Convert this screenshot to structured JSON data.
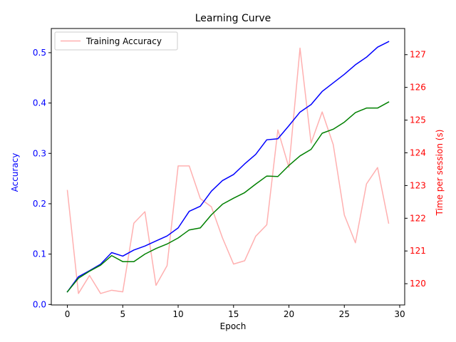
{
  "chart_data": {
    "type": "line",
    "title": "Learning Curve",
    "xlabel": "Epoch",
    "ylabel_left": "Accuracy",
    "ylabel_right": "Time per session (s)",
    "x": [
      0,
      1,
      2,
      3,
      4,
      5,
      6,
      7,
      8,
      9,
      10,
      11,
      12,
      13,
      14,
      15,
      16,
      17,
      18,
      19,
      20,
      21,
      22,
      23,
      24,
      25,
      26,
      27,
      28,
      29
    ],
    "xlim": [
      -1.45,
      30.45
    ],
    "xticks": [
      0,
      5,
      10,
      15,
      20,
      25,
      30
    ],
    "ylim_left": [
      -0.001,
      0.548
    ],
    "yticks_left": [
      0.0,
      0.1,
      0.2,
      0.3,
      0.4,
      0.5
    ],
    "ylim_right": [
      119.35,
      127.8
    ],
    "yticks_right": [
      120,
      121,
      122,
      123,
      124,
      125,
      126,
      127
    ],
    "legend": {
      "position": "upper-left",
      "entries": [
        "Training Accuracy"
      ]
    },
    "grid": false,
    "series": [
      {
        "name": "Training Accuracy",
        "axis": "left",
        "color": "#0000ff",
        "values": [
          0.025,
          0.055,
          0.067,
          0.08,
          0.103,
          0.096,
          0.108,
          0.116,
          0.126,
          0.136,
          0.152,
          0.185,
          0.195,
          0.225,
          0.246,
          0.258,
          0.279,
          0.298,
          0.327,
          0.329,
          0.355,
          0.382,
          0.397,
          0.423,
          0.44,
          0.457,
          0.476,
          0.491,
          0.511,
          0.522
        ]
      },
      {
        "axis": "left",
        "color": "#008000",
        "values": [
          0.025,
          0.052,
          0.066,
          0.078,
          0.097,
          0.085,
          0.085,
          0.1,
          0.111,
          0.12,
          0.132,
          0.148,
          0.152,
          0.178,
          0.199,
          0.211,
          0.222,
          0.239,
          0.255,
          0.254,
          0.276,
          0.295,
          0.308,
          0.34,
          0.348,
          0.362,
          0.381,
          0.39,
          0.39,
          0.402
        ]
      },
      {
        "axis": "right",
        "color": "#ffb0b0",
        "values": [
          122.85,
          119.7,
          120.25,
          119.7,
          119.8,
          119.75,
          121.85,
          122.2,
          119.95,
          120.55,
          123.6,
          123.6,
          122.6,
          122.35,
          121.4,
          120.6,
          120.7,
          121.45,
          121.8,
          124.7,
          123.55,
          127.2,
          124.3,
          125.25,
          124.25,
          122.1,
          121.25,
          123.05,
          123.55,
          121.85
        ]
      }
    ]
  }
}
